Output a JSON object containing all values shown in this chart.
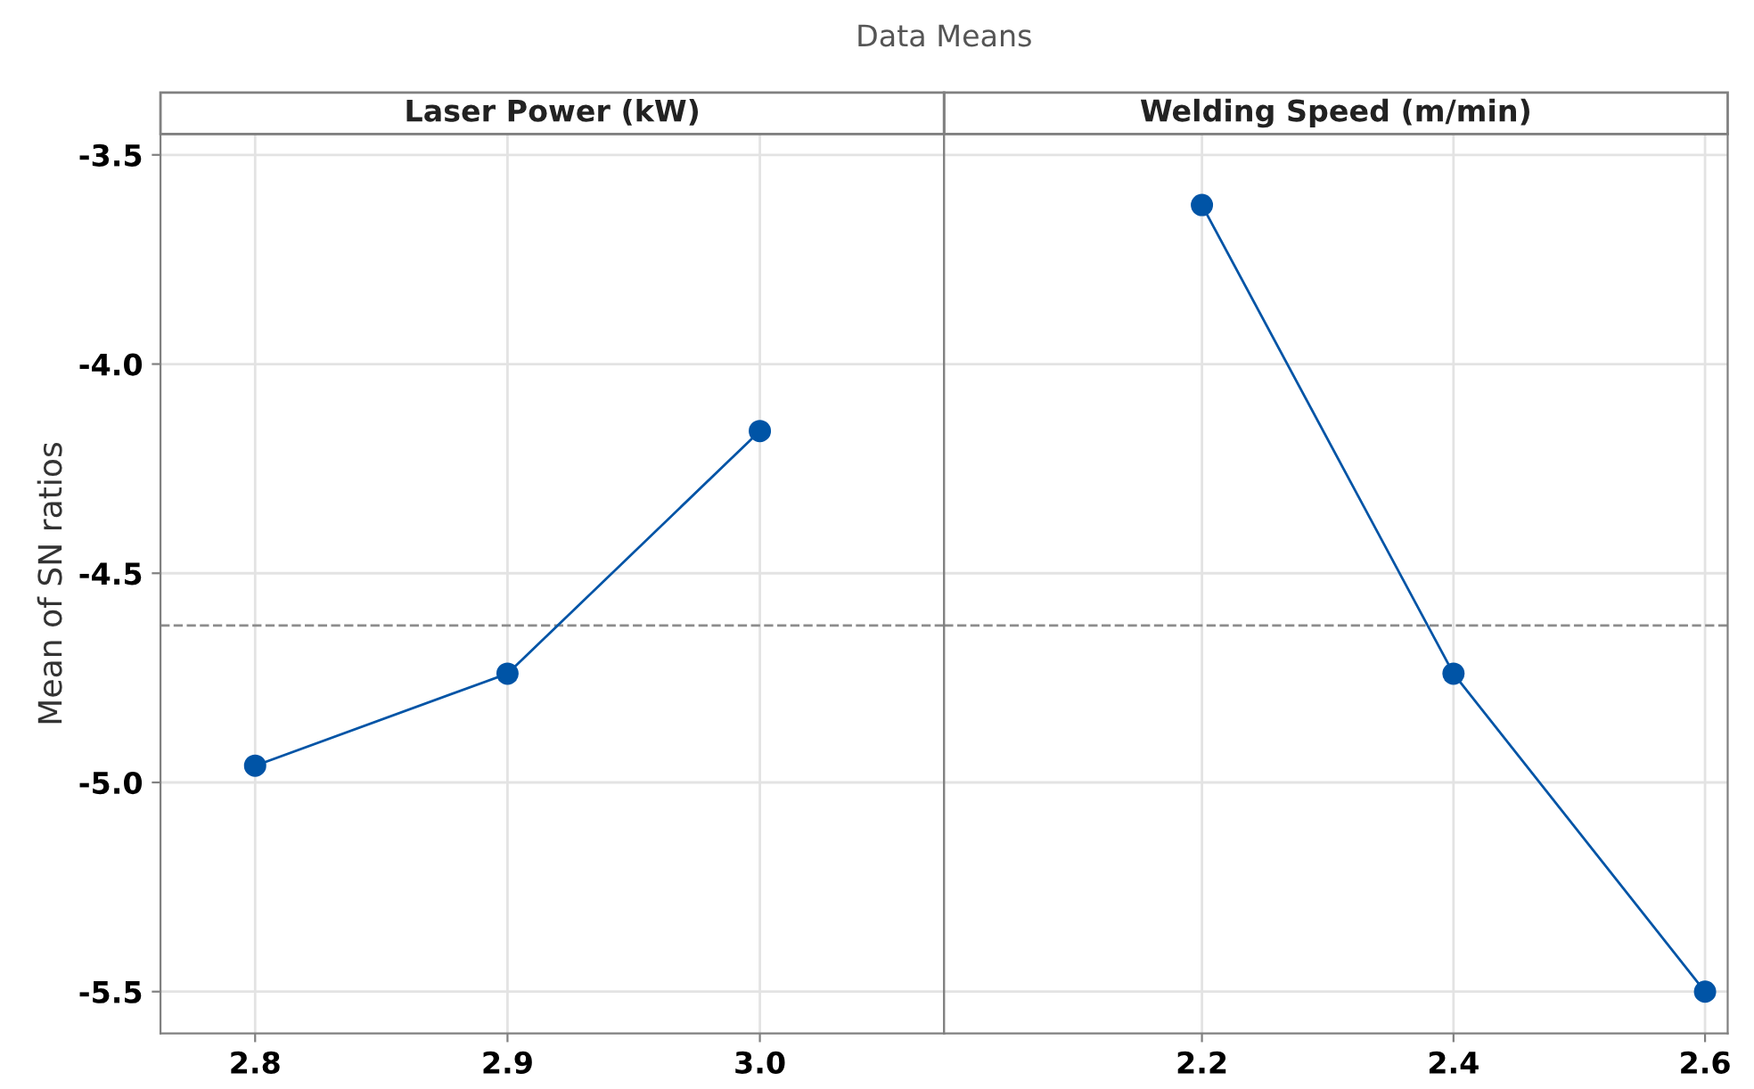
{
  "chart_data": [
    {
      "type": "line",
      "title": "Data Means",
      "subtitle": "Laser Power (kW)",
      "ylabel": "Mean of SN ratios",
      "x": [
        2.8,
        2.9,
        3.0
      ],
      "series": [
        {
          "color": "#0054a6",
          "values": [
            -4.96,
            -4.74,
            -4.16
          ]
        }
      ],
      "xlim": [
        2.7625,
        3.073
      ],
      "xticks": [
        {
          "value": 2.8,
          "label": "2.8"
        },
        {
          "value": 2.9,
          "label": "2.9"
        },
        {
          "value": 3.0,
          "label": "3.0"
        }
      ],
      "ylim": [
        -5.6,
        -3.45
      ],
      "yticks": [
        {
          "value": -3.5,
          "label": "-3.5"
        },
        {
          "value": -4.0,
          "label": "-4.0"
        },
        {
          "value": -4.5,
          "label": "-4.5"
        },
        {
          "value": -5.0,
          "label": "-5.0"
        },
        {
          "value": -5.5,
          "label": "-5.5"
        }
      ],
      "ref_lines": [
        {
          "axis": "y",
          "value": -4.625,
          "color": "#8c8c8c",
          "line_style": "dashed"
        }
      ],
      "grid": true,
      "marker": "circle",
      "line_style": "solid",
      "legend": false
    },
    {
      "type": "line",
      "subtitle": "Welding Speed (m/min)",
      "x": [
        2.2,
        2.4,
        2.6
      ],
      "series": [
        {
          "color": "#0054a6",
          "values": [
            -3.62,
            -4.74,
            -5.5
          ]
        }
      ],
      "xlim": [
        1.995,
        2.618
      ],
      "xticks": [
        {
          "value": 2.2,
          "label": "2.2"
        },
        {
          "value": 2.4,
          "label": "2.4"
        },
        {
          "value": 2.6,
          "label": "2.6"
        }
      ],
      "ylim": [
        -5.6,
        -3.45
      ],
      "yticks": [
        {
          "value": -3.5,
          "label": null
        },
        {
          "value": -4.0,
          "label": null
        },
        {
          "value": -4.5,
          "label": null
        },
        {
          "value": -5.0,
          "label": null
        },
        {
          "value": -5.5,
          "label": null
        }
      ],
      "ref_lines": [
        {
          "axis": "y",
          "value": -4.625,
          "color": "#8c8c8c",
          "line_style": "dashed"
        }
      ],
      "grid": true,
      "marker": "circle",
      "line_style": "solid",
      "tick_labels": "x",
      "legend": false
    }
  ]
}
